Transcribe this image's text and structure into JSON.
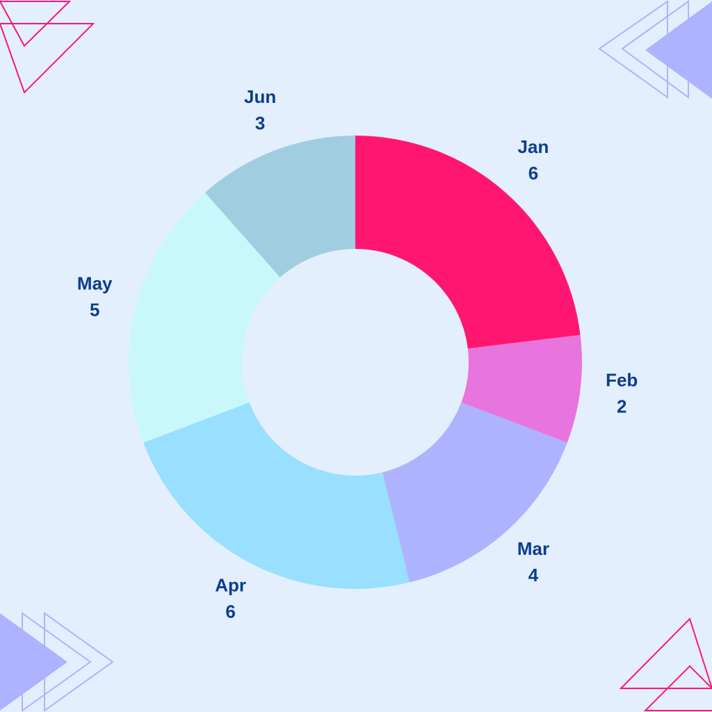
{
  "chart_data": {
    "type": "donut",
    "categories": [
      "Jan",
      "Feb",
      "Mar",
      "Apr",
      "May",
      "Jun"
    ],
    "values": [
      6,
      2,
      4,
      6,
      5,
      3
    ],
    "colors": [
      "#ff1670",
      "#e874de",
      "#adb3ff",
      "#99dfff",
      "#c8f8fc",
      "#a0cee0"
    ]
  }
}
